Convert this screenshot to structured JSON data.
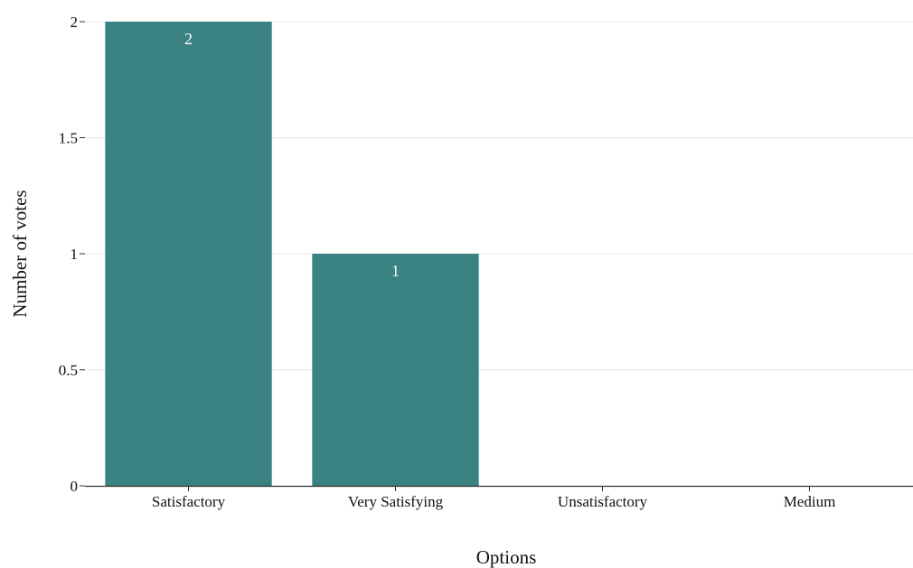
{
  "chart_data": {
    "type": "bar",
    "categories": [
      "Satisfactory",
      "Very Satisfying",
      "Unsatisfactory",
      "Medium"
    ],
    "values": [
      2,
      1,
      0,
      0
    ],
    "data_labels": [
      "2",
      "1",
      "",
      ""
    ],
    "xlabel": "Options",
    "ylabel": "Number of votes",
    "ylim": [
      0,
      2
    ],
    "yticks": [
      0,
      0.5,
      1,
      1.5,
      2
    ],
    "ytick_labels": [
      "0",
      "0.5",
      "1",
      "1.5",
      "2"
    ],
    "grid": true,
    "legend": "none",
    "colors": {
      "bar": "#3a8181",
      "grid": "#e8e8e8",
      "axis": "#333333"
    }
  }
}
